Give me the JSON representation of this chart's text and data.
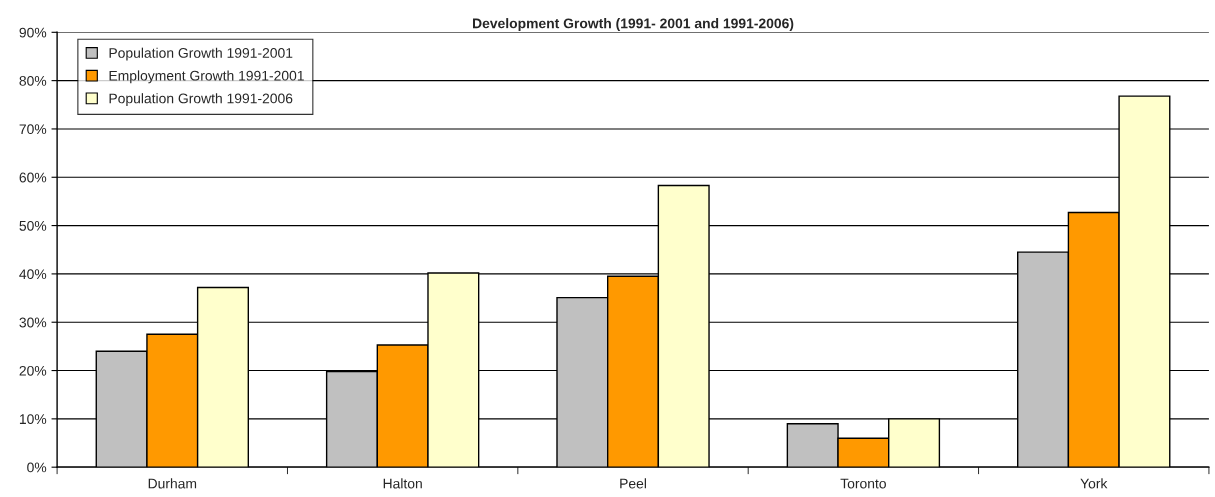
{
  "chart_data": {
    "type": "bar",
    "title": "Development Growth (1991- 2001 and 1991-2006)",
    "categories": [
      "Durham",
      "Halton",
      "Peel",
      "Toronto",
      "York"
    ],
    "series": [
      {
        "name": "Population Growth 1991-2001",
        "color": "#c0c0c0",
        "values": [
          24.0,
          19.8,
          35.1,
          9.0,
          44.5
        ]
      },
      {
        "name": "Employment Growth 1991-2001",
        "color": "#ff9900",
        "values": [
          27.5,
          25.3,
          39.5,
          6.0,
          52.7
        ]
      },
      {
        "name": "Population Growth 1991-2006",
        "color": "#ffffcc",
        "values": [
          37.2,
          40.2,
          58.3,
          10.0,
          76.8
        ]
      }
    ],
    "ylim": [
      0,
      90
    ],
    "yticks": [
      {
        "value": 0,
        "label": "0%"
      },
      {
        "value": 10,
        "label": "10%"
      },
      {
        "value": 20,
        "label": "20%"
      },
      {
        "value": 30,
        "label": "30%"
      },
      {
        "value": 40,
        "label": "40%"
      },
      {
        "value": 50,
        "label": "50%"
      },
      {
        "value": 60,
        "label": "60%"
      },
      {
        "value": 70,
        "label": "70%"
      },
      {
        "value": 80,
        "label": "80%"
      },
      {
        "value": 90,
        "label": "90%"
      }
    ],
    "grid": "y",
    "legend": "top left"
  }
}
